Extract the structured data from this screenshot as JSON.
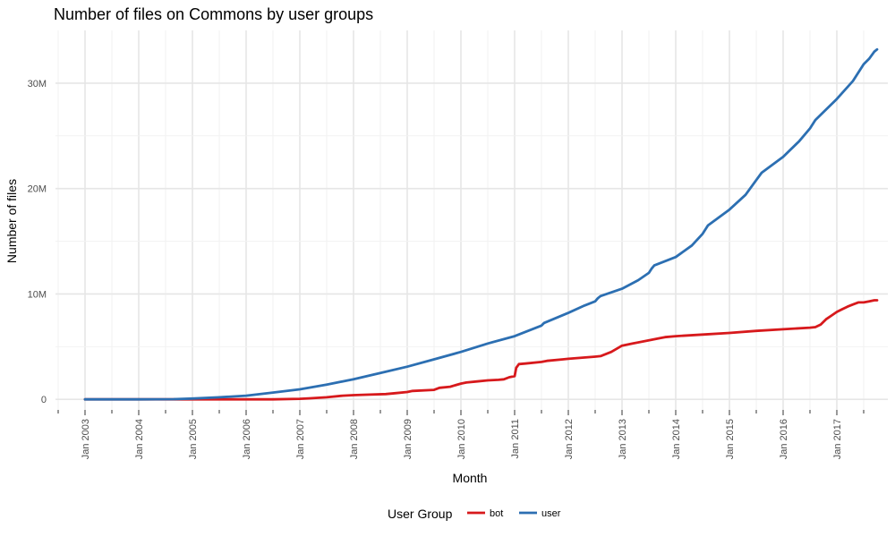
{
  "chart_data": {
    "type": "line",
    "title": "Number of files on Commons by user groups",
    "xlabel": "Month",
    "ylabel": "Number of files",
    "x_ticks": [
      "Jan 2003",
      "Jan 2004",
      "Jan 2005",
      "Jan 2006",
      "Jan 2007",
      "Jan 2008",
      "Jan 2009",
      "Jan 2010",
      "Jan 2011",
      "Jan 2012",
      "Jan 2013",
      "Jan 2014",
      "Jan 2015",
      "Jan 2016",
      "Jan 2017"
    ],
    "y_ticks": [
      "0",
      "10M",
      "20M",
      "30M"
    ],
    "y_tick_values": [
      0,
      10,
      20,
      30
    ],
    "y_unit": "millions of files",
    "xlim": [
      2002.45,
      2017.95
    ],
    "ylim": [
      -1.0,
      35.0
    ],
    "grid": true,
    "legend": {
      "title": "User Group",
      "position": "bottom"
    },
    "series": [
      {
        "name": "bot",
        "color": "#d7191c",
        "x": [
          2003.0,
          2004.0,
          2004.65,
          2005.0,
          2005.5,
          2006.0,
          2006.5,
          2007.0,
          2007.2,
          2007.5,
          2007.8,
          2008.0,
          2008.3,
          2008.6,
          2008.8,
          2009.0,
          2009.1,
          2009.5,
          2009.6,
          2009.8,
          2010.0,
          2010.1,
          2010.3,
          2010.5,
          2010.7,
          2010.8,
          2010.9,
          2011.0,
          2011.03,
          2011.08,
          2011.2,
          2011.5,
          2011.6,
          2011.9,
          2012.0,
          2012.5,
          2012.6,
          2012.7,
          2012.8,
          2012.9,
          2013.0,
          2013.2,
          2013.5,
          2013.7,
          2013.8,
          2014.0,
          2014.5,
          2015.0,
          2015.5,
          2016.0,
          2016.5,
          2016.6,
          2016.7,
          2016.8,
          2016.9,
          2017.0,
          2017.1,
          2017.2,
          2017.3,
          2017.4,
          2017.5,
          2017.6,
          2017.7,
          2017.75
        ],
        "values": [
          0,
          0,
          0,
          0,
          0,
          0,
          0,
          0.05,
          0.1,
          0.2,
          0.35,
          0.4,
          0.45,
          0.5,
          0.6,
          0.7,
          0.8,
          0.9,
          1.1,
          1.2,
          1.5,
          1.6,
          1.7,
          1.8,
          1.85,
          1.9,
          2.1,
          2.2,
          3.0,
          3.35,
          3.4,
          3.55,
          3.65,
          3.8,
          3.85,
          4.05,
          4.1,
          4.3,
          4.5,
          4.8,
          5.1,
          5.3,
          5.6,
          5.8,
          5.9,
          6.0,
          6.15,
          6.3,
          6.5,
          6.65,
          6.8,
          6.85,
          7.1,
          7.6,
          7.95,
          8.3,
          8.55,
          8.8,
          9.0,
          9.2,
          9.2,
          9.3,
          9.4,
          9.4
        ]
      },
      {
        "name": "user",
        "color": "#2c6fb2",
        "x": [
          2003.0,
          2004.0,
          2004.65,
          2005.0,
          2005.5,
          2006.0,
          2006.5,
          2007.0,
          2007.5,
          2008.0,
          2008.5,
          2009.0,
          2009.5,
          2010.0,
          2010.5,
          2011.0,
          2011.5,
          2011.55,
          2012.0,
          2012.3,
          2012.5,
          2012.55,
          2012.6,
          2013.0,
          2013.3,
          2013.5,
          2013.55,
          2013.6,
          2014.0,
          2014.3,
          2014.5,
          2014.6,
          2015.0,
          2015.3,
          2015.5,
          2015.6,
          2016.0,
          2016.3,
          2016.5,
          2016.6,
          2017.0,
          2017.3,
          2017.5,
          2017.6,
          2017.7,
          2017.75
        ],
        "values": [
          0,
          0,
          0.02,
          0.08,
          0.2,
          0.35,
          0.65,
          0.95,
          1.4,
          1.9,
          2.5,
          3.1,
          3.8,
          4.5,
          5.3,
          6.0,
          7.0,
          7.25,
          8.2,
          8.9,
          9.3,
          9.6,
          9.8,
          10.5,
          11.3,
          12.0,
          12.4,
          12.7,
          13.5,
          14.6,
          15.7,
          16.5,
          18.0,
          19.4,
          20.8,
          21.5,
          23.0,
          24.5,
          25.7,
          26.5,
          28.5,
          30.2,
          31.8,
          32.3,
          33.0,
          33.2
        ]
      }
    ]
  }
}
